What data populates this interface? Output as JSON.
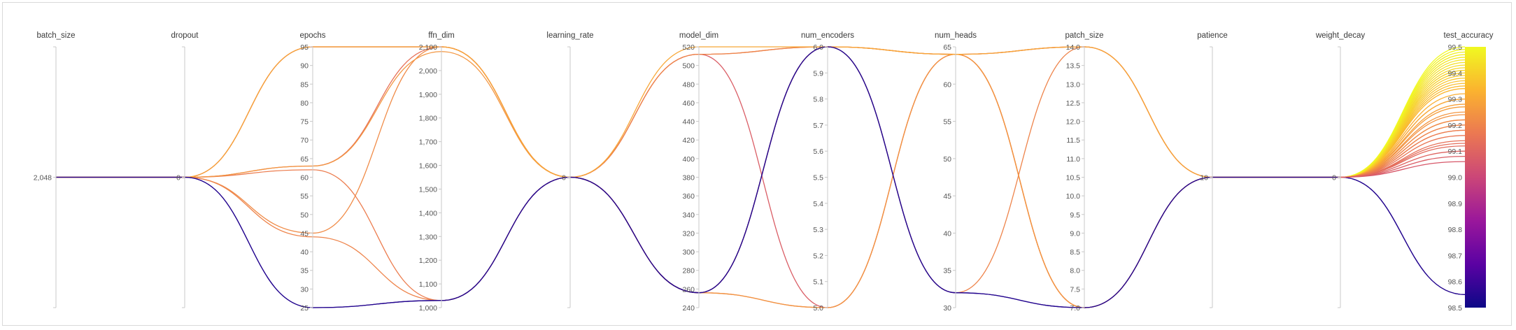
{
  "chart_data": {
    "type": "parallel_coordinates",
    "axes": [
      {
        "key": "batch_size",
        "label": "batch_size",
        "type": "single",
        "value": 2048,
        "tick": "2,048"
      },
      {
        "key": "dropout",
        "label": "dropout",
        "type": "single",
        "value": 0,
        "tick": "0"
      },
      {
        "key": "epochs",
        "label": "epochs",
        "type": "linear",
        "min": 25,
        "max": 95,
        "ticks": [
          "25",
          "30",
          "35",
          "40",
          "45",
          "50",
          "55",
          "60",
          "65",
          "70",
          "75",
          "80",
          "85",
          "90",
          "95"
        ]
      },
      {
        "key": "ffn_dim",
        "label": "ffn_dim",
        "type": "linear",
        "min": 1000,
        "max": 2100,
        "ticks": [
          "1,000",
          "1,100",
          "1,200",
          "1,300",
          "1,400",
          "1,500",
          "1,600",
          "1,700",
          "1,800",
          "1,900",
          "2,000",
          "2,100"
        ]
      },
      {
        "key": "learning_rate",
        "label": "learning_rate",
        "type": "single",
        "value": 0,
        "tick": "0"
      },
      {
        "key": "model_dim",
        "label": "model_dim",
        "type": "linear",
        "min": 240,
        "max": 520,
        "ticks": [
          "240",
          "260",
          "280",
          "300",
          "320",
          "340",
          "360",
          "380",
          "400",
          "420",
          "440",
          "460",
          "480",
          "500",
          "520"
        ]
      },
      {
        "key": "num_encoders",
        "label": "num_encoders",
        "type": "linear",
        "min": 5.0,
        "max": 6.0,
        "ticks": [
          "5.0",
          "5.1",
          "5.2",
          "5.3",
          "5.4",
          "5.5",
          "5.6",
          "5.7",
          "5.8",
          "5.9",
          "6.0"
        ]
      },
      {
        "key": "num_heads",
        "label": "num_heads",
        "type": "linear",
        "min": 30,
        "max": 65,
        "ticks": [
          "30",
          "35",
          "40",
          "45",
          "50",
          "55",
          "60",
          "65"
        ]
      },
      {
        "key": "patch_size",
        "label": "patch_size",
        "type": "linear",
        "min": 7.0,
        "max": 14.0,
        "ticks": [
          "7.0",
          "7.5",
          "8.0",
          "8.5",
          "9.0",
          "9.5",
          "10.0",
          "10.5",
          "11.0",
          "11.5",
          "12.0",
          "12.5",
          "13.0",
          "13.5",
          "14.0"
        ]
      },
      {
        "key": "patience",
        "label": "patience",
        "type": "single",
        "value": 10,
        "tick": "10"
      },
      {
        "key": "weight_decay",
        "label": "weight_decay",
        "type": "single",
        "value": 0,
        "tick": "0"
      },
      {
        "key": "test_accuracy",
        "label": "test_accuracy",
        "type": "colorbar",
        "min": 98.5,
        "max": 99.5,
        "ticks": [
          "98.5",
          "98.6",
          "98.7",
          "98.8",
          "98.9",
          "99.0",
          "99.1",
          "99.2",
          "99.3",
          "99.4",
          "99.5"
        ]
      }
    ],
    "colorscale": [
      "#0d0887",
      "#5b02a3",
      "#9a179b",
      "#cb4678",
      "#eb7852",
      "#fbb32f",
      "#f0f921"
    ],
    "runs": [
      {
        "epochs": 95,
        "ffn_dim": 2100,
        "model_dim": 512,
        "num_encoders": 5.0,
        "num_heads": 64,
        "patch_size": 14.0,
        "test_accuracy": 99.08
      },
      {
        "epochs": 95,
        "ffn_dim": 2100,
        "model_dim": 256,
        "num_encoders": 6.0,
        "num_heads": 64,
        "patch_size": 7.0,
        "test_accuracy": 99.12
      },
      {
        "epochs": 63,
        "ffn_dim": 2100,
        "model_dim": 256,
        "num_encoders": 5.0,
        "num_heads": 64,
        "patch_size": 14.0,
        "test_accuracy": 99.14
      },
      {
        "epochs": 62,
        "ffn_dim": 1030,
        "model_dim": 512,
        "num_encoders": 6.0,
        "num_heads": 64,
        "patch_size": 7.0,
        "test_accuracy": 99.18
      },
      {
        "epochs": 45,
        "ffn_dim": 2100,
        "model_dim": 256,
        "num_encoders": 6.0,
        "num_heads": 64,
        "patch_size": 7.0,
        "test_accuracy": 99.22
      },
      {
        "epochs": 44,
        "ffn_dim": 1030,
        "model_dim": 512,
        "num_encoders": 6.0,
        "num_heads": 32,
        "patch_size": 14.0,
        "test_accuracy": 99.2
      },
      {
        "epochs": 63,
        "ffn_dim": 2080,
        "model_dim": 256,
        "num_encoders": 5.0,
        "num_heads": 64,
        "patch_size": 7.0,
        "test_accuracy": 99.25
      },
      {
        "epochs": 95,
        "ffn_dim": 2100,
        "model_dim": 520,
        "num_encoders": 6.0,
        "num_heads": 64,
        "patch_size": 14.0,
        "test_accuracy": 99.3
      },
      {
        "epochs": 25,
        "ffn_dim": 1030,
        "model_dim": 256,
        "num_encoders": 6.0,
        "num_heads": 32,
        "patch_size": 7.0,
        "test_accuracy": 98.55
      },
      {
        "epochs": 25,
        "ffn_dim": 1030,
        "model_dim": 256,
        "num_encoders": 6.0,
        "num_heads": 32,
        "patch_size": 7.0,
        "test_accuracy": 98.55
      }
    ],
    "fan_values": [
      99.28,
      99.3,
      99.32,
      99.34,
      99.35,
      99.36,
      99.37,
      99.38,
      99.39,
      99.4,
      99.41,
      99.42,
      99.43,
      99.44,
      99.45,
      99.46,
      99.47,
      99.48,
      99.49,
      99.5,
      99.27,
      99.24,
      99.22,
      99.2,
      99.18,
      99.16,
      99.13,
      99.1,
      99.06
    ]
  }
}
